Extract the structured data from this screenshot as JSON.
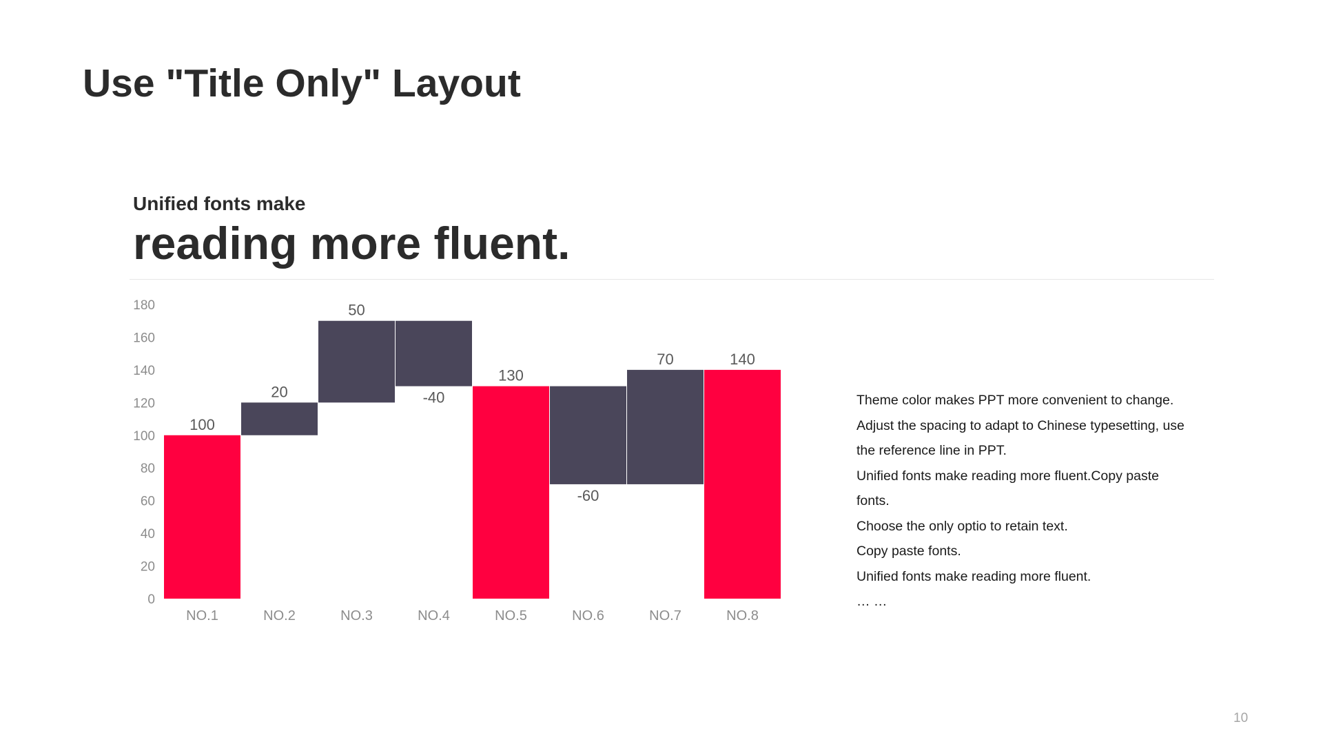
{
  "slide": {
    "title": "Use \"Title Only\" Layout",
    "subtitle_small": "Unified fonts make",
    "subtitle_large": "reading more fluent.",
    "page_number": "10"
  },
  "notes": [
    "Theme  color makes PPT more convenient  to change.",
    "Adjust  the spacing  to adapt to Chinese  typesetting, use",
    "the reference line  in  PPT.",
    "Unified  fonts make reading more fluent.Copy paste",
    "fonts.",
    "Choose  the only optio to retain text.",
    "Copy paste  fonts.",
    "Unified  fonts make reading more fluent.",
    "… …"
  ],
  "colors": {
    "total": "#ff0040",
    "change": "#4a465a",
    "axis_text": "#8c8c8c",
    "data_label": "#595959"
  },
  "chart_data": {
    "type": "bar",
    "subtype": "waterfall",
    "categories": [
      "NO.1",
      "NO.2",
      "NO.3",
      "NO.4",
      "NO.5",
      "NO.6",
      "NO.7",
      "NO.8"
    ],
    "values": [
      100,
      20,
      50,
      -40,
      130,
      -60,
      70,
      140
    ],
    "data_labels": [
      "100",
      "20",
      "50",
      "-40",
      "130",
      "-60",
      "70",
      "140"
    ],
    "kinds": [
      "total",
      "change",
      "change",
      "change",
      "total",
      "change",
      "change",
      "total"
    ],
    "ylim": [
      0,
      180
    ],
    "yticks": [
      0,
      20,
      40,
      60,
      80,
      100,
      120,
      140,
      160,
      180
    ],
    "grid": false,
    "legend": "none"
  }
}
